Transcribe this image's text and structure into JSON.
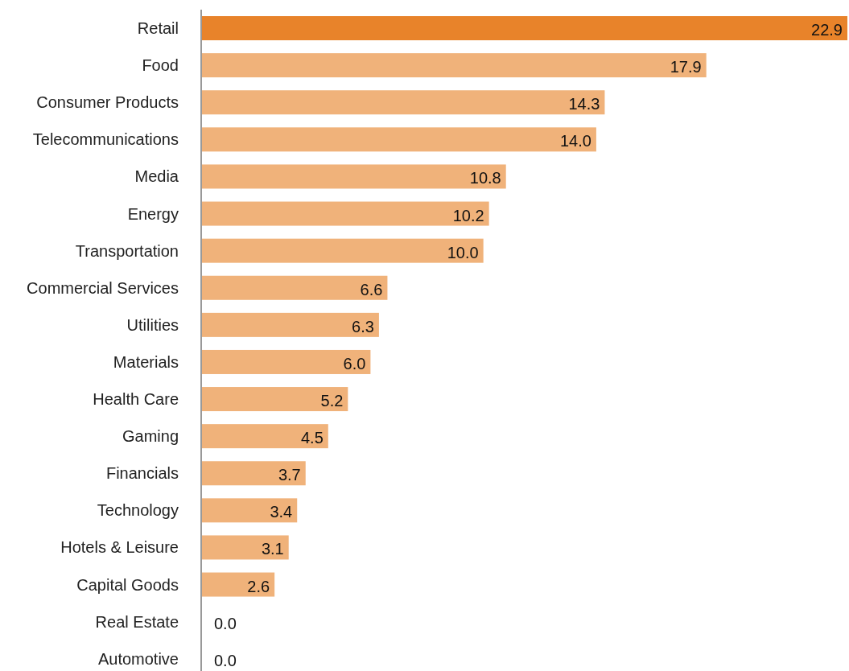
{
  "chart_data": {
    "type": "bar",
    "orientation": "horizontal",
    "value_labels": [
      "22.9",
      "17.9",
      "14.3",
      "14.0",
      "10.8",
      "10.2",
      "10.0",
      "6.6",
      "6.3",
      "6.0",
      "5.2",
      "4.5",
      "3.7",
      "3.4",
      "3.1",
      "2.6",
      "0.0",
      "0.0"
    ],
    "categories": [
      "Retail",
      "Food",
      "Consumer Products",
      "Telecommunications",
      "Media",
      "Energy",
      "Transportation",
      "Commercial Services",
      "Utilities",
      "Materials",
      "Health Care",
      "Gaming",
      "Financials",
      "Technology",
      "Hotels & Leisure",
      "Capital Goods",
      "Real Estate",
      "Automotive"
    ],
    "values": [
      22.9,
      17.9,
      14.3,
      14.0,
      10.8,
      10.2,
      10.0,
      6.6,
      6.3,
      6.0,
      5.2,
      4.5,
      3.7,
      3.4,
      3.1,
      2.6,
      0.0,
      0.0
    ],
    "colors": [
      "#e8832a",
      "#f0b27a",
      "#f0b27a",
      "#f0b27a",
      "#f0b27a",
      "#f0b27a",
      "#f0b27a",
      "#f0b27a",
      "#f0b27a",
      "#f0b27a",
      "#f0b27a",
      "#f0b27a",
      "#f0b27a",
      "#f0b27a",
      "#f0b27a",
      "#f0b27a",
      "#f0b27a",
      "#f0b27a"
    ]
  }
}
